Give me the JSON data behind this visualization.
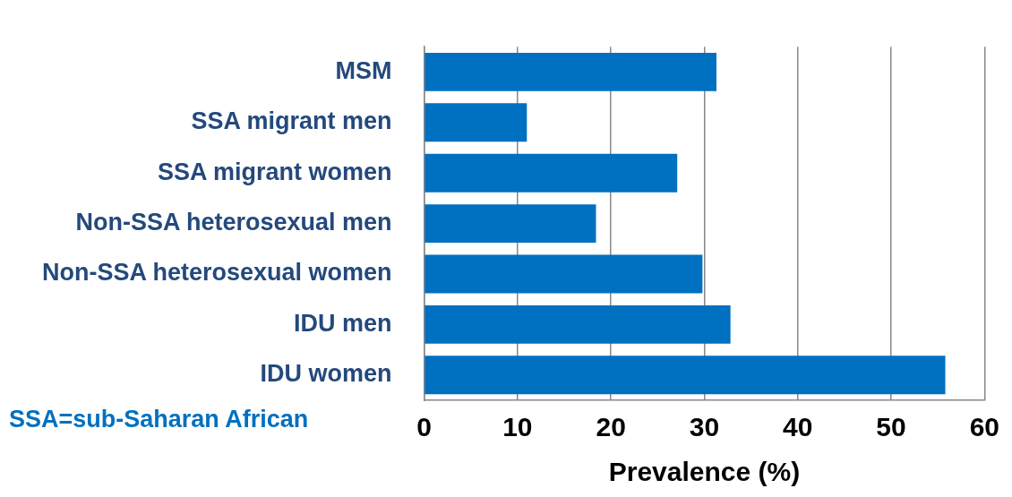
{
  "chart_data": {
    "type": "bar",
    "orientation": "horizontal",
    "xlabel": "Prevalence (%)",
    "categories": [
      "MSM",
      "SSA migrant men",
      "SSA migrant women",
      "Non-SSA heterosexual men",
      "Non-SSA heterosexual women",
      "IDU men",
      "IDU women"
    ],
    "values": [
      31.3,
      11.0,
      27.1,
      18.4,
      29.8,
      32.8,
      55.8
    ],
    "color": "#0070c0",
    "xlim": [
      0,
      60
    ],
    "xticks": [
      0,
      10,
      20,
      30,
      40,
      50,
      60
    ],
    "grid": "x",
    "annotations": [
      "SSA=sub-Saharan African"
    ]
  }
}
